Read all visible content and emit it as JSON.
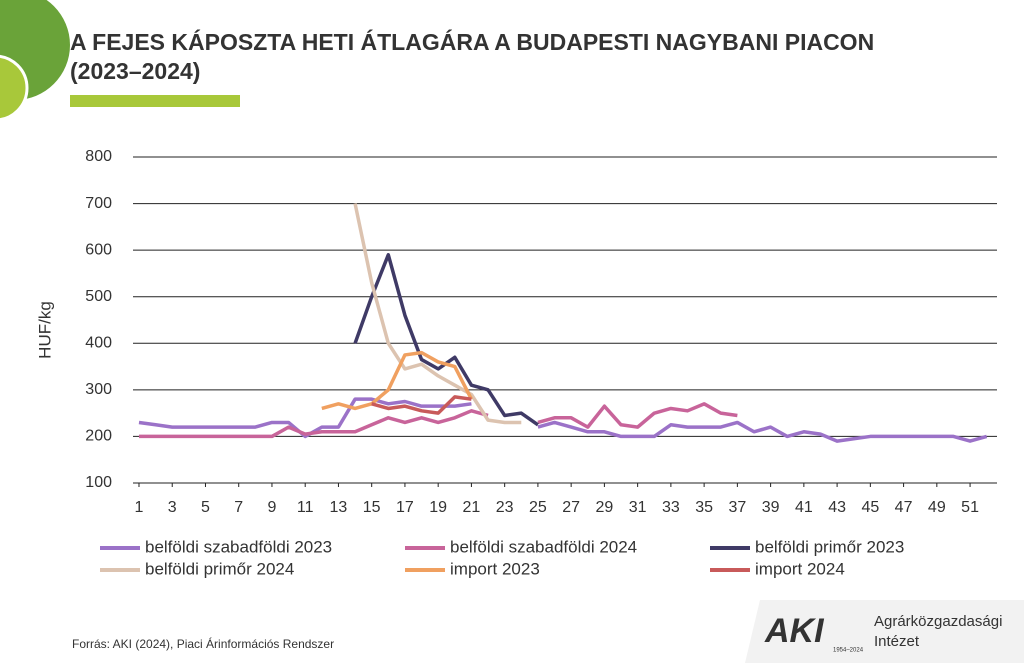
{
  "chart_data": {
    "type": "line",
    "title": [
      "A FEJES KÁPOSZTA HETI ÁTLAGÁRA A BUDAPESTI NAGYBANI PIACON",
      "(2023–2024)"
    ],
    "y_label": "HUF/kg",
    "source": "Forrás: AKI (2024), Piaci Árinformációs Rendszer",
    "x": [
      1,
      2,
      3,
      4,
      5,
      6,
      7,
      8,
      9,
      10,
      11,
      12,
      13,
      14,
      15,
      16,
      17,
      18,
      19,
      20,
      21,
      22,
      23,
      24,
      25,
      26,
      27,
      28,
      29,
      30,
      31,
      32,
      33,
      34,
      35,
      36,
      37,
      38,
      39,
      40,
      41,
      42,
      43,
      44,
      45,
      46,
      47,
      48,
      49,
      50,
      51,
      52
    ],
    "xlim": [
      0.64,
      52.62
    ],
    "xticks": [
      1,
      3,
      5,
      7,
      9,
      11,
      13,
      15,
      17,
      19,
      21,
      23,
      25,
      27,
      29,
      31,
      33,
      35,
      37,
      39,
      41,
      43,
      45,
      47,
      49,
      51
    ],
    "ylim": [
      100,
      800
    ],
    "yticks": [
      100,
      200,
      300,
      400,
      500,
      600,
      700,
      800
    ],
    "grid": true,
    "series": [
      {
        "name": "belföldi szabadföldi 2023",
        "color": "#9b72c8",
        "values": [
          230,
          225,
          220,
          220,
          220,
          220,
          220,
          220,
          230,
          230,
          200,
          220,
          220,
          280,
          280,
          270,
          275,
          265,
          265,
          265,
          270,
          null,
          null,
          null,
          220,
          230,
          220,
          210,
          210,
          200,
          200,
          200,
          225,
          220,
          220,
          220,
          230,
          210,
          220,
          200,
          210,
          205,
          190,
          195,
          200,
          200,
          200,
          200,
          200,
          200,
          190,
          200
        ]
      },
      {
        "name": "belföldi szabadföldi 2024",
        "color": "#c8649a",
        "values": [
          200,
          200,
          200,
          200,
          200,
          200,
          200,
          200,
          200,
          220,
          205,
          210,
          210,
          210,
          225,
          240,
          230,
          240,
          230,
          240,
          255,
          245,
          null,
          null,
          230,
          240,
          240,
          220,
          265,
          225,
          220,
          250,
          260,
          255,
          270,
          250,
          245,
          null,
          null,
          null,
          null,
          null,
          null,
          null,
          null,
          null,
          null,
          null,
          null,
          null,
          null,
          null
        ]
      },
      {
        "name": "belföldi primőr 2023",
        "color": "#3f3a66",
        "values": [
          null,
          null,
          null,
          null,
          null,
          null,
          null,
          null,
          null,
          null,
          null,
          null,
          null,
          400,
          500,
          590,
          460,
          365,
          345,
          370,
          310,
          300,
          245,
          250,
          225,
          null,
          null,
          null,
          null,
          null,
          null,
          null,
          null,
          null,
          null,
          null,
          null,
          null,
          null,
          null,
          null,
          null,
          null,
          null,
          null,
          null,
          null,
          null,
          null,
          null,
          null,
          null
        ]
      },
      {
        "name": "belföldi primőr 2024",
        "color": "#dcc3b0",
        "values": [
          null,
          null,
          null,
          null,
          null,
          null,
          null,
          null,
          null,
          null,
          null,
          null,
          null,
          700,
          530,
          400,
          345,
          355,
          330,
          310,
          290,
          235,
          230,
          230,
          null,
          null,
          null,
          null,
          null,
          null,
          null,
          null,
          null,
          null,
          null,
          null,
          null,
          null,
          null,
          null,
          null,
          null,
          null,
          null,
          null,
          null,
          null,
          null,
          null,
          null,
          null,
          null
        ]
      },
      {
        "name": "import 2023",
        "color": "#f0a060",
        "values": [
          null,
          null,
          null,
          null,
          null,
          null,
          null,
          null,
          null,
          null,
          null,
          260,
          270,
          260,
          270,
          300,
          375,
          380,
          360,
          350,
          280,
          null,
          null,
          null,
          null,
          null,
          null,
          null,
          null,
          null,
          null,
          null,
          null,
          null,
          null,
          null,
          null,
          null,
          null,
          null,
          null,
          null,
          null,
          null,
          null,
          null,
          null,
          null,
          null,
          null,
          null,
          null
        ]
      },
      {
        "name": "import 2024",
        "color": "#c85a5a",
        "values": [
          null,
          null,
          null,
          null,
          null,
          null,
          null,
          null,
          null,
          null,
          null,
          null,
          null,
          null,
          270,
          260,
          265,
          255,
          250,
          285,
          280,
          null,
          null,
          null,
          null,
          null,
          null,
          null,
          null,
          null,
          null,
          null,
          null,
          null,
          null,
          null,
          null,
          null,
          null,
          null,
          null,
          null,
          null,
          null,
          null,
          null,
          null,
          null,
          null,
          null,
          null,
          null
        ]
      }
    ]
  },
  "logo": {
    "mark": "AKI",
    "line1": "Agrárközgazdasági",
    "line2": "Intézet",
    "years": "1954–2024"
  }
}
